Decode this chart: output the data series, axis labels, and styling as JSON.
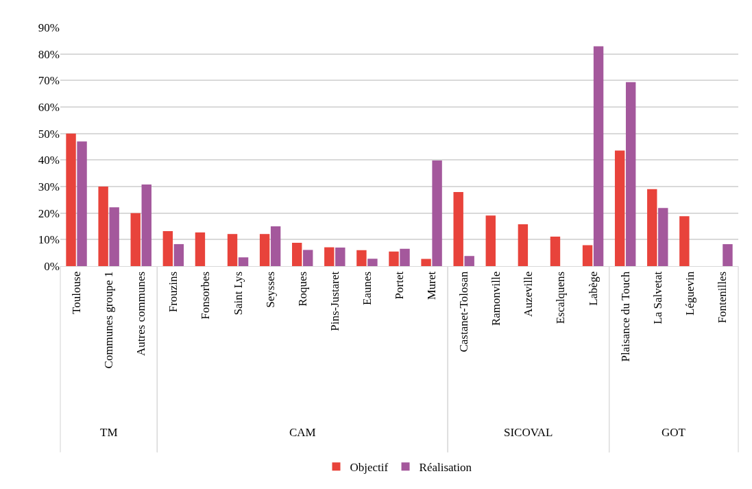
{
  "chart_data": [
    {
      "type": "bar",
      "xlabel": "TM",
      "categories": [
        "Toulouse",
        "Communes groupe 1",
        "Autres communes"
      ],
      "series": [
        {
          "name": "Objectif",
          "color": "#e8433b",
          "values": [
            50,
            30,
            20
          ]
        },
        {
          "name": "Réalisation",
          "color": "#a4589c",
          "values": [
            47,
            22.2,
            30.8
          ]
        }
      ],
      "ylim": [
        0,
        90
      ],
      "yticks": [
        {
          "value": 0,
          "label": "0%"
        },
        {
          "value": 10,
          "label": "10%"
        },
        {
          "value": 20,
          "label": "20%"
        },
        {
          "value": 30,
          "label": "30%"
        },
        {
          "value": 40,
          "label": "40%"
        },
        {
          "value": 50,
          "label": "50%"
        },
        {
          "value": 60,
          "label": "60%"
        },
        {
          "value": 70,
          "label": "70%"
        },
        {
          "value": 80,
          "label": "80%"
        },
        {
          "value": 90,
          "label": "90%"
        }
      ],
      "grid": "y",
      "legend": "bottom"
    },
    {
      "type": "bar",
      "xlabel": "CAM",
      "categories": [
        "Frouzins",
        "Fonsorbes",
        "Saint Lys",
        "Seysses",
        "Roques",
        "Pins-Justaret",
        "Eaunes",
        "Portet",
        "Muret"
      ],
      "series": [
        {
          "name": "Objectif",
          "color": "#e8433b",
          "values": [
            13.2,
            12.7,
            12.1,
            12.1,
            8.8,
            7.1,
            6,
            5.5,
            2.7
          ]
        },
        {
          "name": "Réalisation",
          "color": "#a4589c",
          "values": [
            8.3,
            null,
            3.3,
            15,
            6.1,
            7,
            2.8,
            6.5,
            39.8
          ]
        }
      ],
      "ylim": [
        0,
        90
      ],
      "yticks": [
        {
          "value": 0,
          "label": null
        },
        {
          "value": 10,
          "label": null
        },
        {
          "value": 20,
          "label": null
        },
        {
          "value": 30,
          "label": null
        },
        {
          "value": 40,
          "label": null
        },
        {
          "value": 50,
          "label": null
        },
        {
          "value": 60,
          "label": null
        },
        {
          "value": 70,
          "label": null
        },
        {
          "value": 80,
          "label": null
        },
        {
          "value": 90,
          "label": null
        }
      ],
      "grid": "y",
      "legend": "bottom",
      "tick_labels": "x"
    },
    {
      "type": "bar",
      "xlabel": "SICOVAL",
      "categories": [
        "Castanet-Tolosan",
        "Ramonville",
        "Auzeville",
        "Escalquens",
        "Labège"
      ],
      "series": [
        {
          "name": "Objectif",
          "color": "#e8433b",
          "values": [
            27.9,
            19.1,
            15.8,
            11.1,
            7.9
          ]
        },
        {
          "name": "Réalisation",
          "color": "#a4589c",
          "values": [
            3.8,
            null,
            null,
            null,
            82.9
          ]
        }
      ],
      "ylim": [
        0,
        90
      ],
      "yticks": [
        {
          "value": 0,
          "label": null
        },
        {
          "value": 10,
          "label": null
        },
        {
          "value": 20,
          "label": null
        },
        {
          "value": 30,
          "label": null
        },
        {
          "value": 40,
          "label": null
        },
        {
          "value": 50,
          "label": null
        },
        {
          "value": 60,
          "label": null
        },
        {
          "value": 70,
          "label": null
        },
        {
          "value": 80,
          "label": null
        },
        {
          "value": 90,
          "label": null
        }
      ],
      "grid": "y",
      "legend": "bottom",
      "tick_labels": "x"
    },
    {
      "type": "bar",
      "xlabel": "GOT",
      "categories": [
        "Plaisance du Touch",
        "La Salvetat",
        "Léguevin",
        "Fontenilles"
      ],
      "series": [
        {
          "name": "Objectif",
          "color": "#e8433b",
          "values": [
            43.6,
            29,
            18.8,
            null
          ]
        },
        {
          "name": "Réalisation",
          "color": "#a4589c",
          "values": [
            69.4,
            21.9,
            null,
            8.3
          ]
        }
      ],
      "ylim": [
        0,
        90
      ],
      "yticks": [
        {
          "value": 0,
          "label": null
        },
        {
          "value": 10,
          "label": null
        },
        {
          "value": 20,
          "label": null
        },
        {
          "value": 30,
          "label": null
        },
        {
          "value": 40,
          "label": null
        },
        {
          "value": 50,
          "label": null
        },
        {
          "value": 60,
          "label": null
        },
        {
          "value": 70,
          "label": null
        },
        {
          "value": 80,
          "label": null
        },
        {
          "value": 90,
          "label": null
        }
      ],
      "grid": "y",
      "legend": "bottom",
      "tick_labels": "x"
    }
  ]
}
